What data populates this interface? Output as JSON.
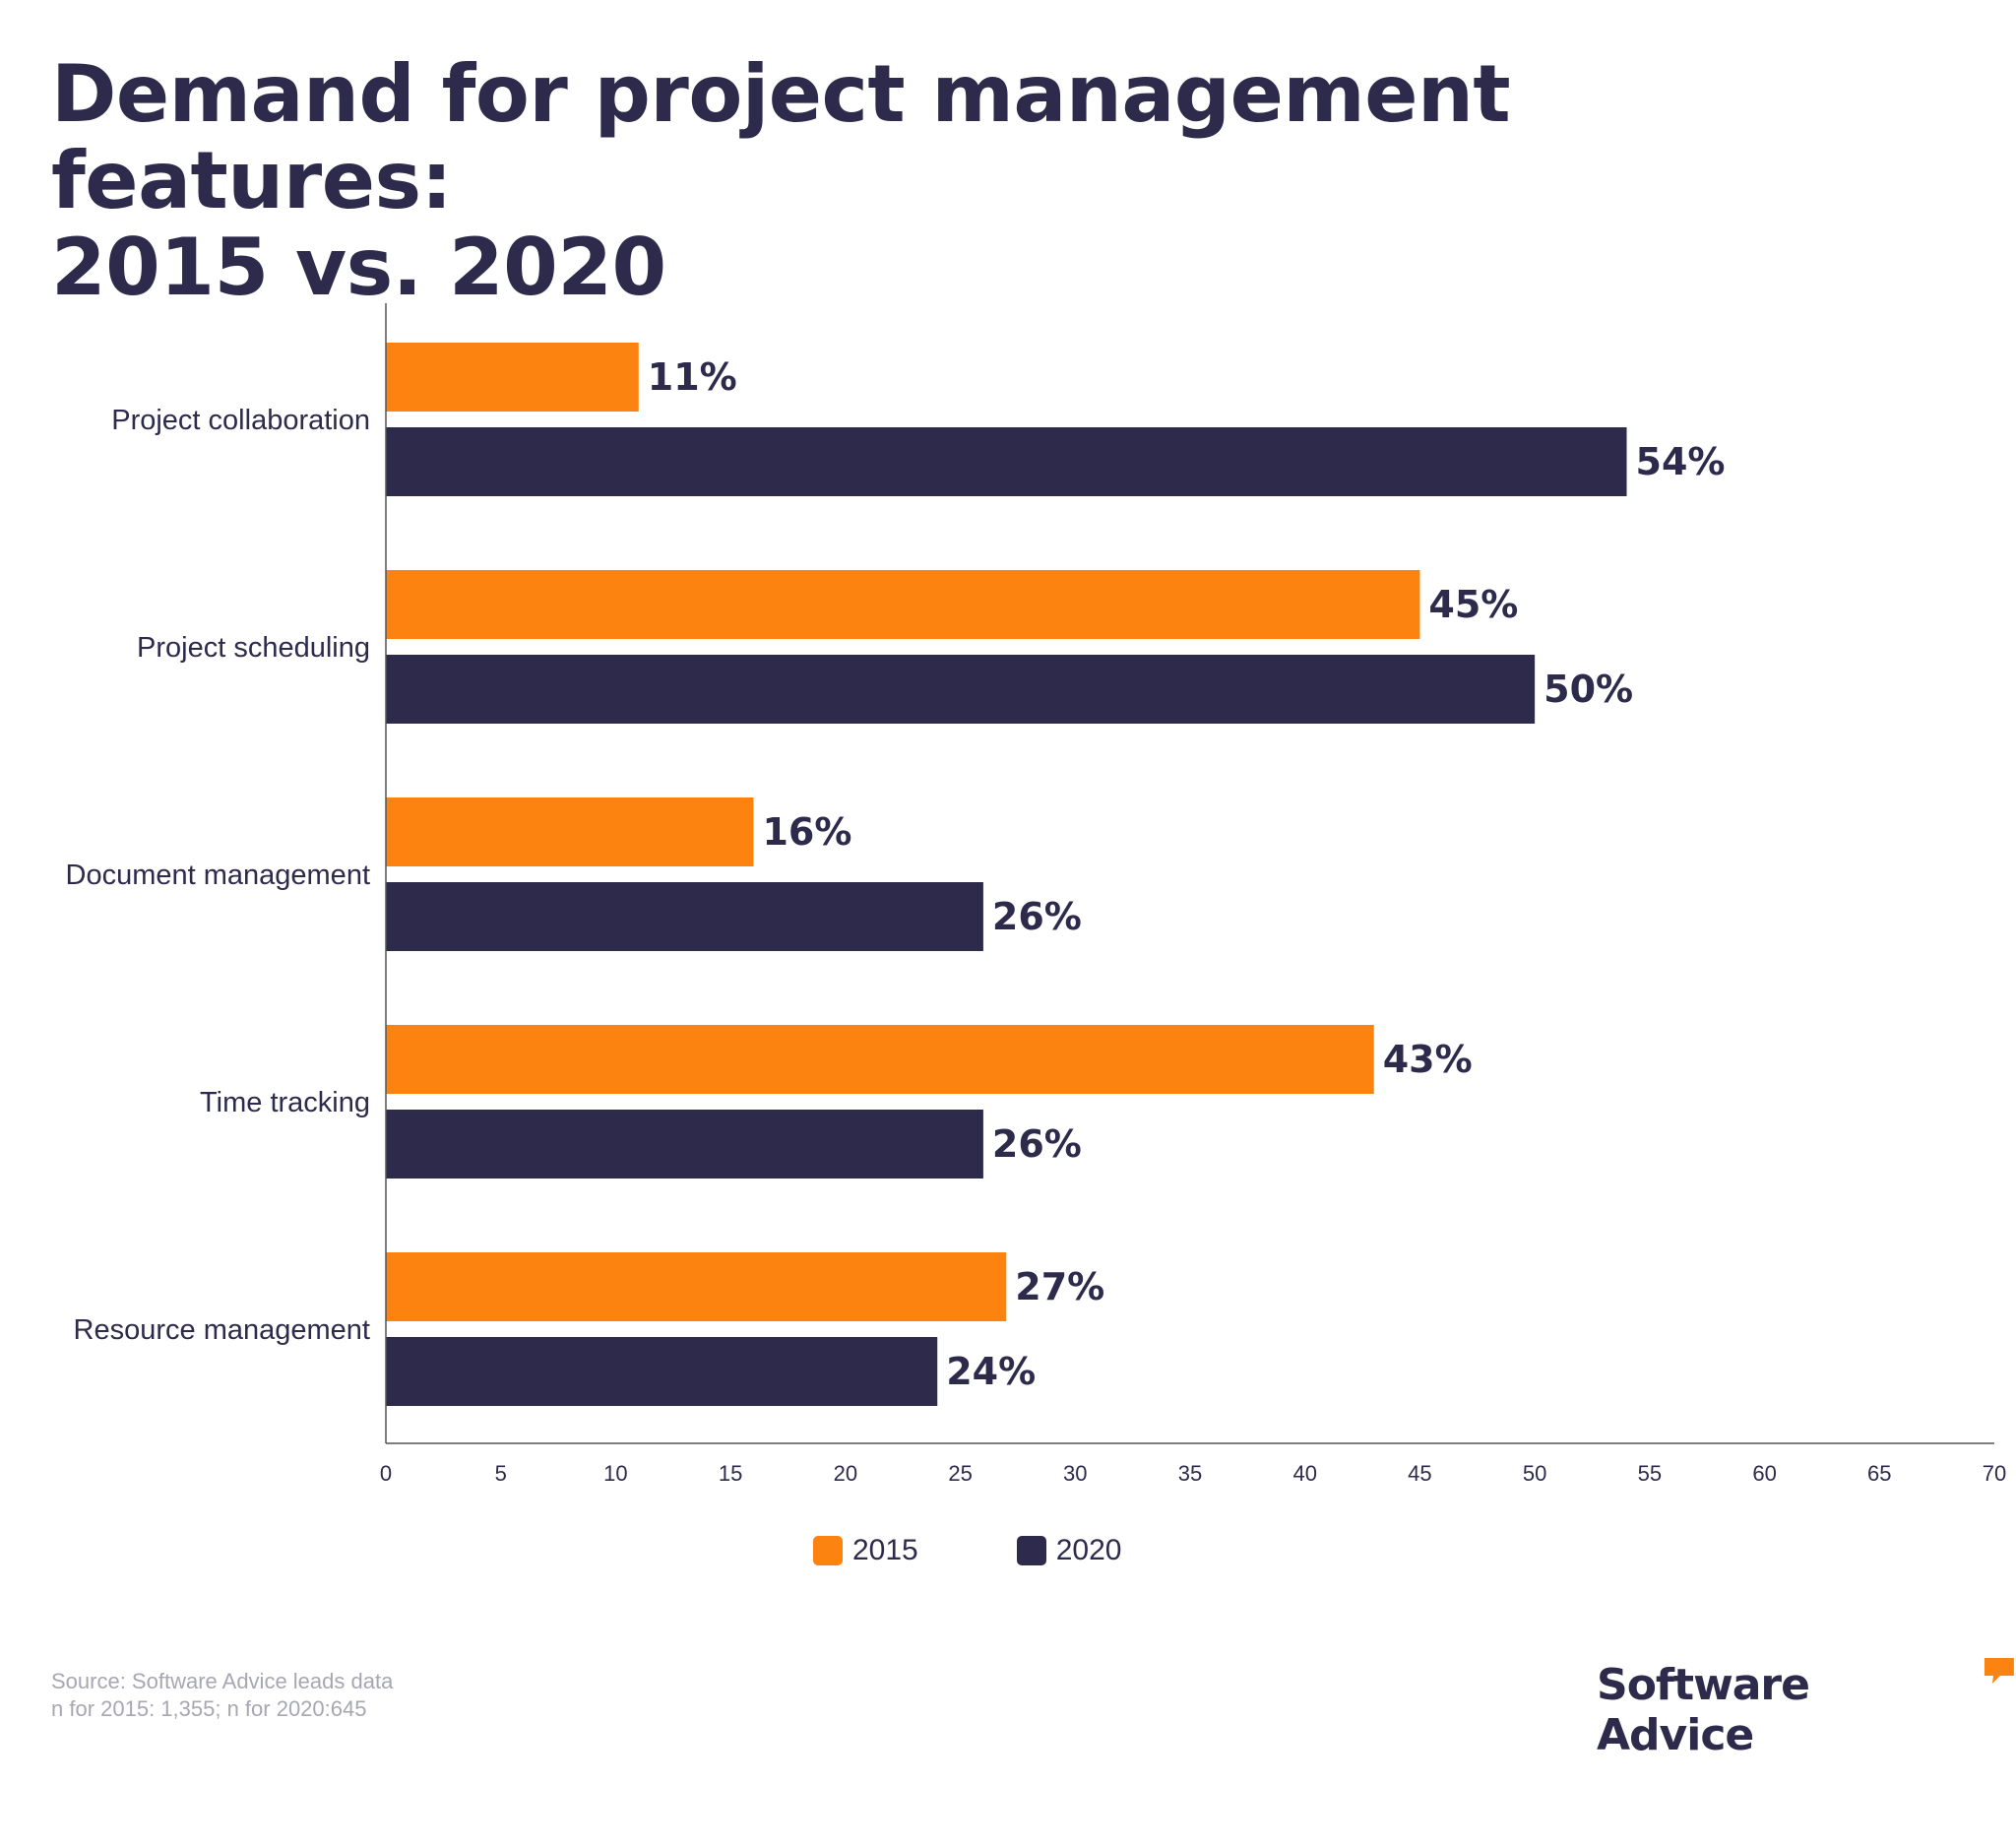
{
  "title_lines": [
    "Demand for project management features:",
    "2015 vs. 2020"
  ],
  "colors": {
    "series_2015": "#fc830f",
    "series_2020": "#2d2a4c",
    "text": "#2d2a4c",
    "axis": "#555555",
    "source": "#a7a7b2"
  },
  "chart_data": {
    "type": "bar",
    "orientation": "horizontal",
    "categories": [
      "Project collaboration",
      "Project scheduling",
      "Document management",
      "Time tracking",
      "Resource management"
    ],
    "series": [
      {
        "name": "2015",
        "values": [
          11,
          45,
          16,
          43,
          27
        ],
        "labels": [
          "11%",
          "45%",
          "16%",
          "43%",
          "27%"
        ]
      },
      {
        "name": "2020",
        "values": [
          54,
          50,
          26,
          26,
          24
        ],
        "labels": [
          "54%",
          "50%",
          "26%",
          "26%",
          "24%"
        ]
      }
    ],
    "xlim": [
      0,
      70
    ],
    "xticks": [
      0,
      5,
      10,
      15,
      20,
      25,
      30,
      35,
      40,
      45,
      50,
      55,
      60,
      65,
      70
    ],
    "grid": false,
    "legend": "bottom-center"
  },
  "legend": {
    "items": [
      "2015",
      "2020"
    ]
  },
  "source": {
    "line1": "Source: Software Advice leads data",
    "line2": "n for 2015: 1,355; n for 2020:645"
  },
  "brand": {
    "name": "Software Advice"
  }
}
